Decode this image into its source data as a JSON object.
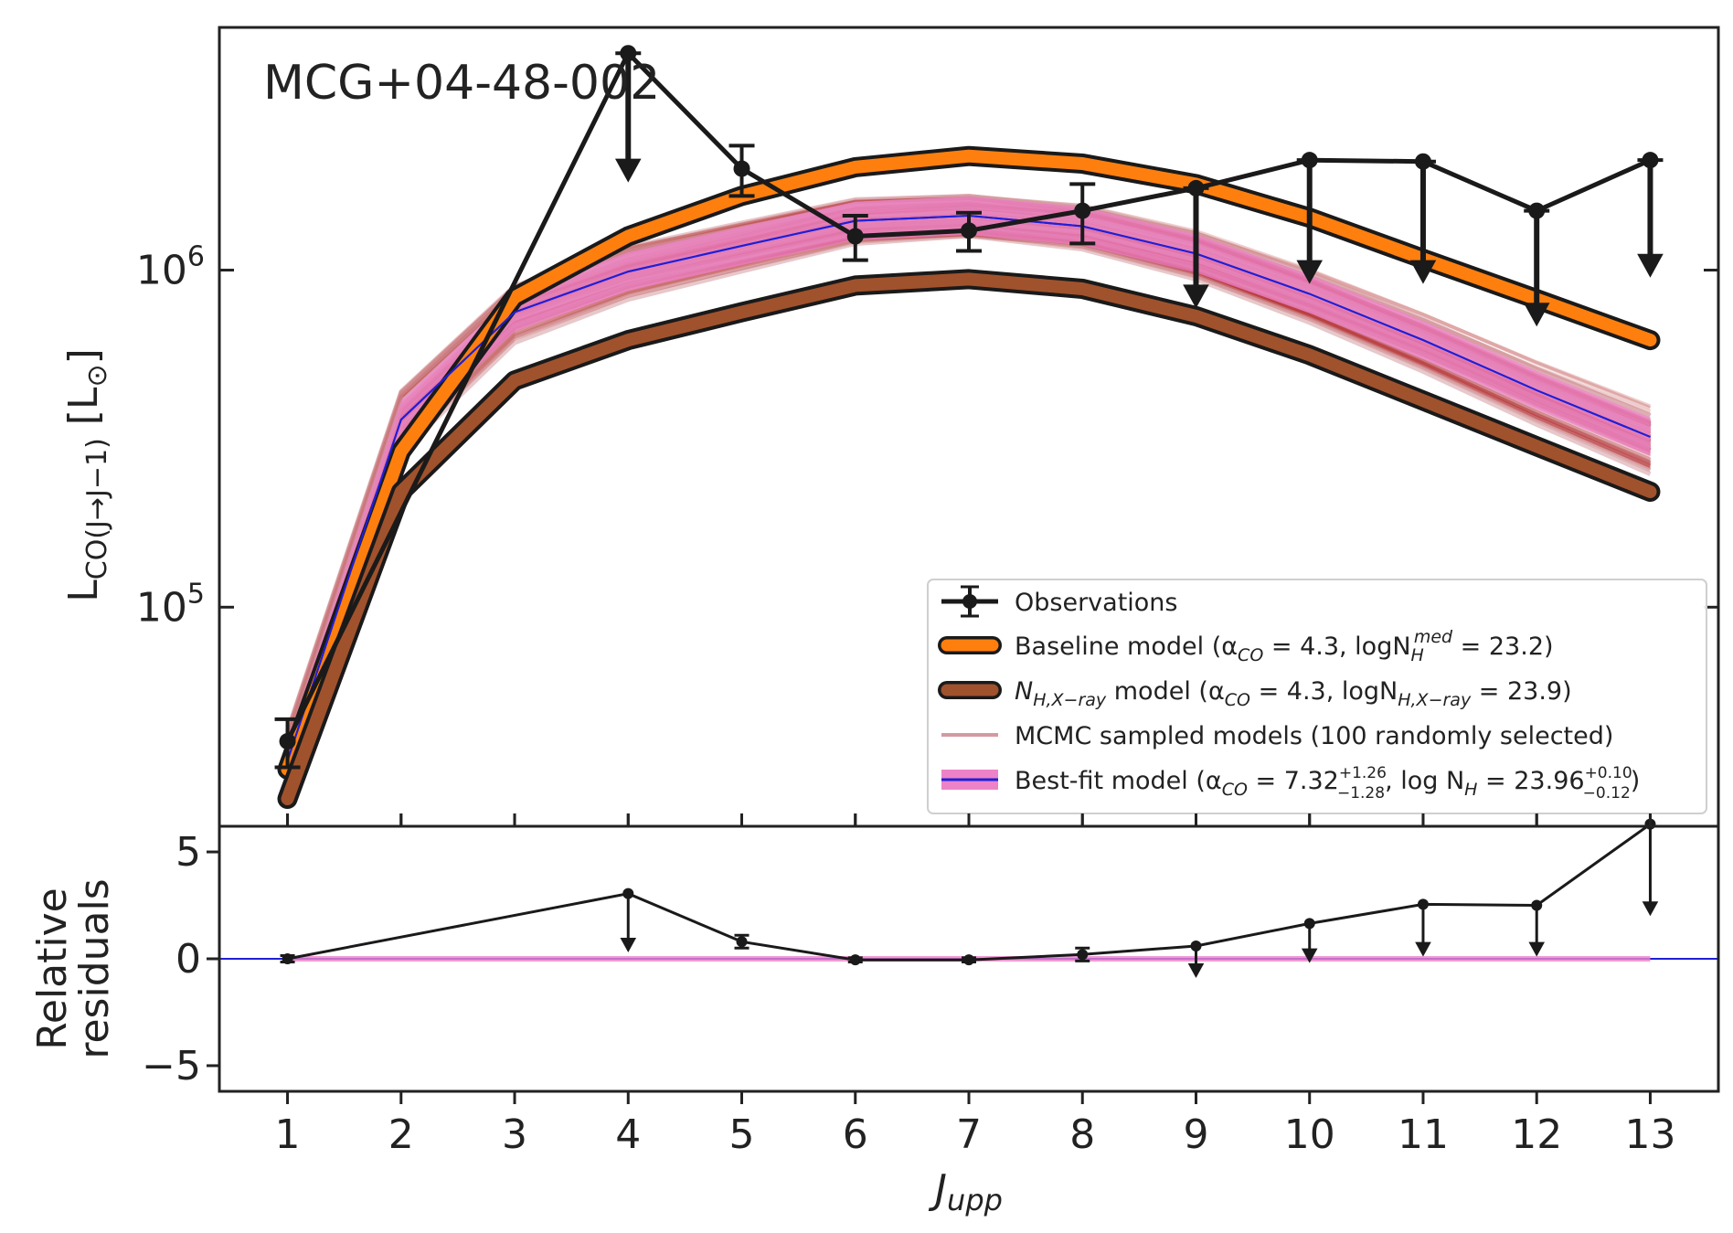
{
  "chart_data": {
    "type": "line",
    "title": "MCG+04-48-002",
    "xlabel": "J_upp",
    "ylabel_main": "L_CO(J→J−1) [L⊙]",
    "ylabel_resid": [
      "Relative",
      "residuals"
    ],
    "x": [
      1,
      2,
      3,
      4,
      5,
      6,
      7,
      8,
      9,
      10,
      11,
      12,
      13
    ],
    "xlim": [
      0.4,
      13.6
    ],
    "ylim_main_log10": [
      4.35,
      6.72
    ],
    "ylim_resid": [
      -6.2,
      6.2
    ],
    "y_ticks_main": [
      {
        "exp": 5,
        "text": "10",
        "sup": "5"
      },
      {
        "exp": 6,
        "text": "10",
        "sup": "6"
      }
    ],
    "y_ticks_resid": [
      {
        "v": 5,
        "text": "5"
      },
      {
        "v": 0,
        "text": "0"
      },
      {
        "v": -5,
        "text": "−5"
      }
    ],
    "colors": {
      "observations": "#1a1a1a",
      "baseline": "#ff7f0e",
      "nh_xray": "#a0522d",
      "mcmc": "#b22222",
      "mcmc_light": "#d49aa0",
      "bestfit_line": "#1f1fd6",
      "bestfit_band": "#ee82c8"
    },
    "series": [
      {
        "name": "Observations",
        "y": [
          40000,
          null,
          null,
          4400000,
          2000000,
          1260000,
          1310000,
          1500000,
          1750000,
          2120000,
          2100000,
          1500000,
          2120000
        ],
        "err_lo": [
          6500,
          null,
          null,
          null,
          340000,
          190000,
          170000,
          300000,
          null,
          null,
          null,
          null,
          null
        ],
        "err_hi": [
          6500,
          null,
          null,
          null,
          340000,
          190000,
          170000,
          300000,
          null,
          null,
          null,
          null,
          null
        ],
        "upper_limit": [
          false,
          null,
          null,
          true,
          false,
          false,
          false,
          false,
          true,
          true,
          true,
          true,
          true
        ],
        "arrow_end": [
          null,
          null,
          null,
          1820000,
          null,
          null,
          null,
          null,
          770000,
          910000,
          910000,
          680000,
          950000
        ]
      },
      {
        "name": "Baseline model",
        "y": [
          33000,
          290000,
          830000,
          1260000,
          1660000,
          2020000,
          2180000,
          2070000,
          1800000,
          1430000,
          1080000,
          820000,
          620000
        ]
      },
      {
        "name": "N_H,X-ray model",
        "y": [
          27000,
          220000,
          470000,
          620000,
          750000,
          900000,
          940000,
          880000,
          730000,
          560000,
          410000,
          300000,
          220000
        ]
      },
      {
        "name": "Best-fit model",
        "y": [
          35000,
          360000,
          750000,
          990000,
          1180000,
          1400000,
          1450000,
          1350000,
          1120000,
          850000,
          620000,
          440000,
          320000
        ]
      }
    ],
    "residuals": {
      "y": [
        0,
        null,
        null,
        3.05,
        0.8,
        -0.05,
        -0.05,
        0.2,
        0.6,
        1.65,
        2.55,
        2.5,
        6.3
      ],
      "err": [
        0.15,
        null,
        null,
        null,
        0.3,
        0.1,
        0.1,
        0.3,
        null,
        null,
        null,
        null,
        null
      ],
      "arrow_end": [
        null,
        null,
        null,
        0.3,
        null,
        null,
        null,
        null,
        -0.9,
        -0.2,
        0.1,
        0.1,
        2.0
      ],
      "zero_line": 0
    },
    "legend": {
      "position": "lower-right",
      "entries": [
        {
          "key": "observations",
          "text": "Observations"
        },
        {
          "key": "baseline",
          "text": "Baseline model (α",
          "sub1": "CO",
          "mid": " = 4.3, logN",
          "sub2": "H",
          "sup2": "med",
          "tail": " = 23.2)"
        },
        {
          "key": "nh_xray",
          "text": "N",
          "sub1": "H,X−ray",
          "mid": " model (α",
          "sub2": "CO",
          "tail": " = 4.3, logN",
          "sub3": "H,X−ray",
          "tail2": " = 23.9)"
        },
        {
          "key": "mcmc",
          "text": "MCMC sampled models (100 randomly selected)"
        },
        {
          "key": "bestfit",
          "text": "Best-fit model (α",
          "sub1": "CO",
          "mid": " = 7.32",
          "sup_plus": "+1.26",
          "sub_minus": "−1.28",
          "tail": ", log N",
          "sub2": "H",
          "tail2": " = 23.96",
          "sup_plus2": "+0.10",
          "sub_minus2": "−0.12",
          "close": ")"
        }
      ]
    }
  }
}
